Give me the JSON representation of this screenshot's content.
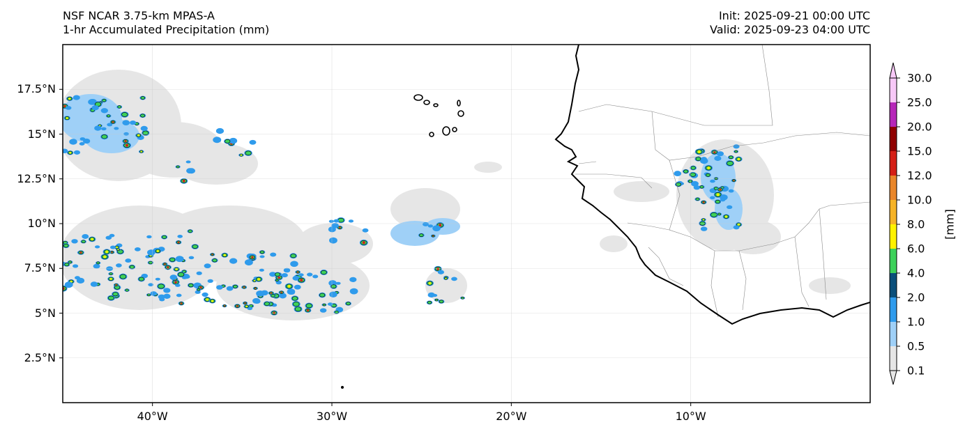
{
  "header": {
    "left_line1": "NSF NCAR 3.75-km MPAS-A",
    "left_line2": "1-hr Accumulated Precipitation (mm)",
    "right_line1": "Init: 2025-09-21 00:00 UTC",
    "right_line2": "Valid: 2025-09-23 04:00 UTC"
  },
  "map": {
    "lon_range": [
      -45,
      0
    ],
    "lat_range": [
      0,
      20
    ],
    "lat_ticks": [
      {
        "value": 2.5,
        "label": "2.5°N"
      },
      {
        "value": 5,
        "label": "5°N"
      },
      {
        "value": 7.5,
        "label": "7.5°N"
      },
      {
        "value": 10,
        "label": "10°N"
      },
      {
        "value": 12.5,
        "label": "12.5°N"
      },
      {
        "value": 15,
        "label": "15°N"
      },
      {
        "value": 17.5,
        "label": "17.5°N"
      }
    ],
    "lon_ticks": [
      {
        "value": -40,
        "label": "40°W"
      },
      {
        "value": -30,
        "label": "30°W"
      },
      {
        "value": -20,
        "label": "20°W"
      },
      {
        "value": -10,
        "label": "10°W"
      }
    ],
    "grid": true
  },
  "colorbar": {
    "unit_label": "[mm]",
    "levels": [
      "0.1",
      "0.5",
      "1.0",
      "2.0",
      "4.0",
      "6.0",
      "8.0",
      "10.0",
      "12.0",
      "15.0",
      "20.0",
      "25.0",
      "30.0"
    ],
    "colors": [
      "#e6e6e6",
      "#9fd0f7",
      "#2f9bec",
      "#0a4f7a",
      "#3dd15a",
      "#fff200",
      "#f6b327",
      "#e9862a",
      "#d41f16",
      "#8f0000",
      "#b627b9",
      "#f7c8f7"
    ],
    "extend": "both"
  }
}
